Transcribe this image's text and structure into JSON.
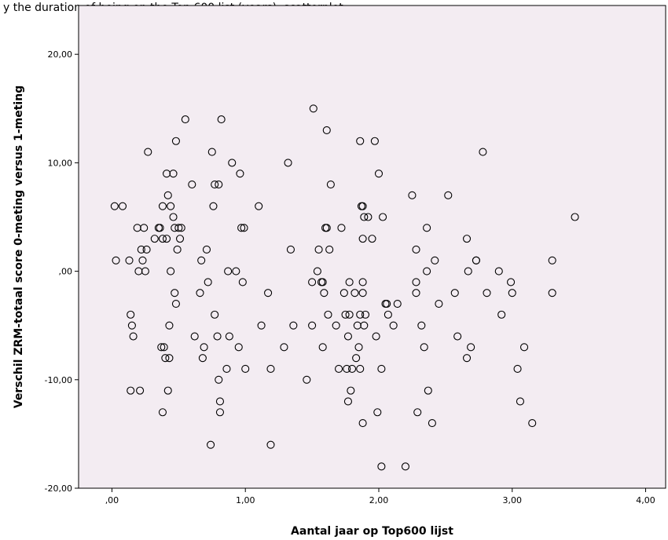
{
  "chart_data": {
    "type": "scatter",
    "title_partial": "y the duration of being on the Top 600 list (years), scatterplot",
    "xlabel": "Aantal jaar op Top600 lijst",
    "ylabel": "Verschil ZRM-totaal score 0-meting versus 1-meting",
    "xlim": [
      -0.25,
      4.15
    ],
    "ylim": [
      -20,
      24.5
    ],
    "xticks": [
      0,
      1,
      2,
      3,
      4
    ],
    "xtick_labels": [
      ",00",
      "1,00",
      "2,00",
      "3,00",
      "4,00"
    ],
    "yticks": [
      -20,
      -10,
      0,
      10,
      20
    ],
    "ytick_labels": [
      "-20,00",
      "-10,00",
      ",00",
      "10,00",
      "20,00"
    ],
    "plot_background": "#f3ecf2",
    "marker_color": "#000000",
    "grid": false,
    "points": [
      [
        0.02,
        6
      ],
      [
        0.08,
        6
      ],
      [
        0.03,
        1
      ],
      [
        0.13,
        1
      ],
      [
        0.14,
        -4
      ],
      [
        0.15,
        -5
      ],
      [
        0.16,
        -6
      ],
      [
        0.14,
        -11
      ],
      [
        0.19,
        4
      ],
      [
        0.2,
        0
      ],
      [
        0.21,
        -11
      ],
      [
        0.22,
        2
      ],
      [
        0.23,
        1
      ],
      [
        0.24,
        4
      ],
      [
        0.25,
        0
      ],
      [
        0.26,
        2
      ],
      [
        0.27,
        11
      ],
      [
        0.32,
        3
      ],
      [
        0.35,
        4
      ],
      [
        0.36,
        4
      ],
      [
        0.37,
        -7
      ],
      [
        0.38,
        6
      ],
      [
        0.38,
        3
      ],
      [
        0.38,
        -13
      ],
      [
        0.39,
        -7
      ],
      [
        0.4,
        -8
      ],
      [
        0.41,
        3
      ],
      [
        0.41,
        9
      ],
      [
        0.42,
        7
      ],
      [
        0.42,
        -11
      ],
      [
        0.43,
        -5
      ],
      [
        0.43,
        -8
      ],
      [
        0.44,
        6
      ],
      [
        0.44,
        0
      ],
      [
        0.46,
        9
      ],
      [
        0.46,
        5
      ],
      [
        0.47,
        4
      ],
      [
        0.47,
        -2
      ],
      [
        0.48,
        -3
      ],
      [
        0.48,
        12
      ],
      [
        0.49,
        2
      ],
      [
        0.5,
        4
      ],
      [
        0.51,
        3
      ],
      [
        0.52,
        4
      ],
      [
        0.55,
        14
      ],
      [
        0.6,
        8
      ],
      [
        0.62,
        -6
      ],
      [
        0.66,
        -2
      ],
      [
        0.67,
        1
      ],
      [
        0.68,
        -8
      ],
      [
        0.69,
        -7
      ],
      [
        0.71,
        2
      ],
      [
        0.72,
        -1
      ],
      [
        0.74,
        -16
      ],
      [
        0.75,
        11
      ],
      [
        0.76,
        6
      ],
      [
        0.77,
        8
      ],
      [
        0.77,
        -4
      ],
      [
        0.79,
        -6
      ],
      [
        0.8,
        8
      ],
      [
        0.8,
        -10
      ],
      [
        0.81,
        -12
      ],
      [
        0.81,
        -13
      ],
      [
        0.82,
        14
      ],
      [
        0.86,
        -9
      ],
      [
        0.87,
        0
      ],
      [
        0.88,
        -6
      ],
      [
        0.9,
        10
      ],
      [
        0.93,
        0
      ],
      [
        0.95,
        -7
      ],
      [
        0.96,
        9
      ],
      [
        0.97,
        4
      ],
      [
        0.98,
        -1
      ],
      [
        0.99,
        4
      ],
      [
        1,
        -9
      ],
      [
        1.1,
        6
      ],
      [
        1.12,
        -5
      ],
      [
        1.17,
        -2
      ],
      [
        1.19,
        -9
      ],
      [
        1.19,
        -16
      ],
      [
        1.29,
        -7
      ],
      [
        1.32,
        10
      ],
      [
        1.34,
        2
      ],
      [
        1.36,
        -5
      ],
      [
        1.46,
        -10
      ],
      [
        1.5,
        -1
      ],
      [
        1.5,
        -5
      ],
      [
        1.51,
        15
      ],
      [
        1.54,
        0
      ],
      [
        1.55,
        2
      ],
      [
        1.57,
        -1
      ],
      [
        1.58,
        -1
      ],
      [
        1.58,
        -7
      ],
      [
        1.59,
        -2
      ],
      [
        1.6,
        4
      ],
      [
        1.61,
        4
      ],
      [
        1.61,
        13
      ],
      [
        1.62,
        -4
      ],
      [
        1.63,
        2
      ],
      [
        1.64,
        8
      ],
      [
        1.68,
        -5
      ],
      [
        1.7,
        -9
      ],
      [
        1.72,
        4
      ],
      [
        1.74,
        -2
      ],
      [
        1.75,
        -4
      ],
      [
        1.76,
        -9
      ],
      [
        1.77,
        -6
      ],
      [
        1.77,
        -12
      ],
      [
        1.78,
        -4
      ],
      [
        1.78,
        -1
      ],
      [
        1.79,
        -11
      ],
      [
        1.8,
        -9
      ],
      [
        1.82,
        -2
      ],
      [
        1.83,
        -8
      ],
      [
        1.84,
        -5
      ],
      [
        1.85,
        -7
      ],
      [
        1.86,
        -9
      ],
      [
        1.86,
        -4
      ],
      [
        1.86,
        12
      ],
      [
        1.87,
        6
      ],
      [
        1.88,
        6
      ],
      [
        1.88,
        3
      ],
      [
        1.88,
        -2
      ],
      [
        1.88,
        -1
      ],
      [
        1.88,
        -14
      ],
      [
        1.89,
        5
      ],
      [
        1.89,
        -5
      ],
      [
        1.9,
        -4
      ],
      [
        1.92,
        5
      ],
      [
        1.95,
        3
      ],
      [
        1.97,
        12
      ],
      [
        1.98,
        -6
      ],
      [
        1.99,
        -13
      ],
      [
        2,
        9
      ],
      [
        2.02,
        -9
      ],
      [
        2.02,
        -18
      ],
      [
        2.03,
        5
      ],
      [
        2.05,
        -3
      ],
      [
        2.06,
        -3
      ],
      [
        2.07,
        -4
      ],
      [
        2.11,
        -5
      ],
      [
        2.14,
        -3
      ],
      [
        2.2,
        -18
      ],
      [
        2.25,
        7
      ],
      [
        2.28,
        2
      ],
      [
        2.28,
        -1
      ],
      [
        2.28,
        -2
      ],
      [
        2.29,
        -13
      ],
      [
        2.32,
        -5
      ],
      [
        2.34,
        -7
      ],
      [
        2.36,
        4
      ],
      [
        2.36,
        0
      ],
      [
        2.37,
        -11
      ],
      [
        2.4,
        -14
      ],
      [
        2.42,
        1
      ],
      [
        2.45,
        -3
      ],
      [
        2.52,
        7
      ],
      [
        2.57,
        -2
      ],
      [
        2.59,
        -6
      ],
      [
        2.66,
        3
      ],
      [
        2.66,
        -8
      ],
      [
        2.67,
        0
      ],
      [
        2.69,
        -7
      ],
      [
        2.73,
        1
      ],
      [
        2.73,
        1
      ],
      [
        2.78,
        11
      ],
      [
        2.81,
        -2
      ],
      [
        2.9,
        0
      ],
      [
        2.92,
        -4
      ],
      [
        2.99,
        -1
      ],
      [
        3,
        -2
      ],
      [
        3.04,
        -9
      ],
      [
        3.06,
        -12
      ],
      [
        3.09,
        -7
      ],
      [
        3.15,
        -14
      ],
      [
        3.3,
        1
      ],
      [
        3.3,
        -2
      ],
      [
        3.47,
        5
      ]
    ]
  }
}
